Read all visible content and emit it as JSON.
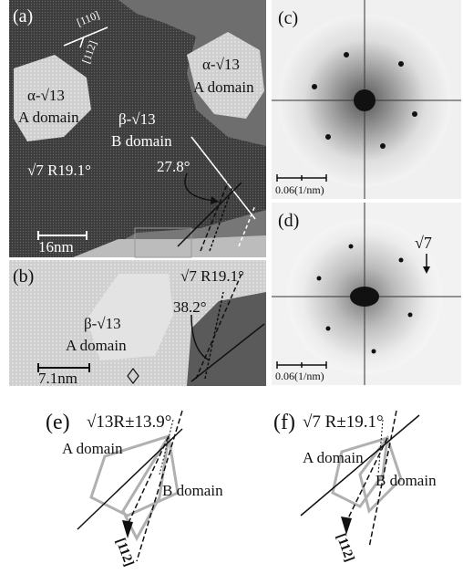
{
  "panels": {
    "a": {
      "label": "(a)",
      "dir_110": "[110]",
      "dir_112": "[112]",
      "alpha_domain_left_1": "α-√13",
      "alpha_domain_left_2": "A domain",
      "alpha_domain_right_1": "α-√13",
      "alpha_domain_right_2": "A domain",
      "beta_1": "β-√13",
      "beta_2": "B domain",
      "sqrt7": "√7 R19.1°",
      "angle": "27.8°",
      "scale": "16nm"
    },
    "b": {
      "label": "(b)",
      "sqrt7": "√7 R19.1°",
      "angle": "38.2°",
      "beta_1": "β-√13",
      "beta_2": "A domain",
      "scale": "7.1nm"
    },
    "c": {
      "label": "(c)",
      "scale": "0.06(1/nm)"
    },
    "d": {
      "label": "(d)",
      "scale": "0.06(1/nm)",
      "sqrt7": "√7"
    },
    "e": {
      "label": "(e)",
      "title": "√13R±13.9°",
      "a_domain": "A domain",
      "b_domain": "B domain",
      "dir": "[112]"
    },
    "f": {
      "label": "(f)",
      "title": "√7 R±19.1°",
      "a_domain": "A domain",
      "b_domain": "B domain",
      "dir": "[112]"
    }
  },
  "colors": {
    "stm_dark": "#3c3c3c",
    "stm_light": "#cfcfcf",
    "fft_bg": "#e8e8e8",
    "hexagon": "#b0b0b0"
  }
}
